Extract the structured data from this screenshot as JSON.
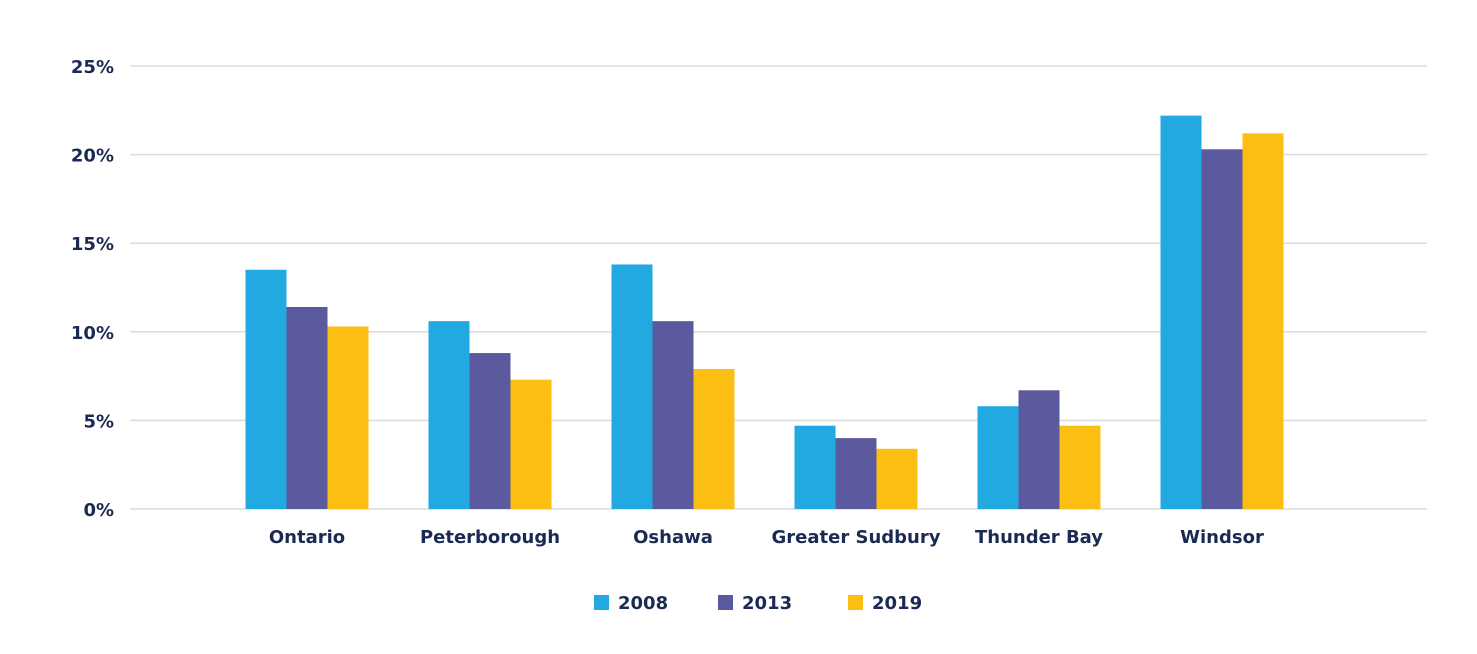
{
  "chart_data": {
    "type": "bar",
    "title": "",
    "xlabel": "",
    "ylabel": "",
    "ylim": [
      0,
      25
    ],
    "yticks": [
      0,
      5,
      10,
      15,
      20,
      25
    ],
    "ytick_labels": [
      "0%",
      "5%",
      "10%",
      "15%",
      "20%",
      "25%"
    ],
    "grid": true,
    "legend_position": "bottom-center",
    "categories": [
      "Ontario",
      "Peterborough",
      "Oshawa",
      "Greater Sudbury",
      "Thunder Bay",
      "Windsor"
    ],
    "series": [
      {
        "name": "2008",
        "color": "#23a9e1",
        "values": [
          13.5,
          10.6,
          13.8,
          4.7,
          5.8,
          22.2
        ]
      },
      {
        "name": "2013",
        "color": "#5b5a9e",
        "values": [
          11.4,
          8.8,
          10.6,
          4.0,
          6.7,
          20.3
        ]
      },
      {
        "name": "2019",
        "color": "#fdbe14",
        "values": [
          10.3,
          7.3,
          7.9,
          3.4,
          4.7,
          21.2
        ]
      }
    ]
  }
}
